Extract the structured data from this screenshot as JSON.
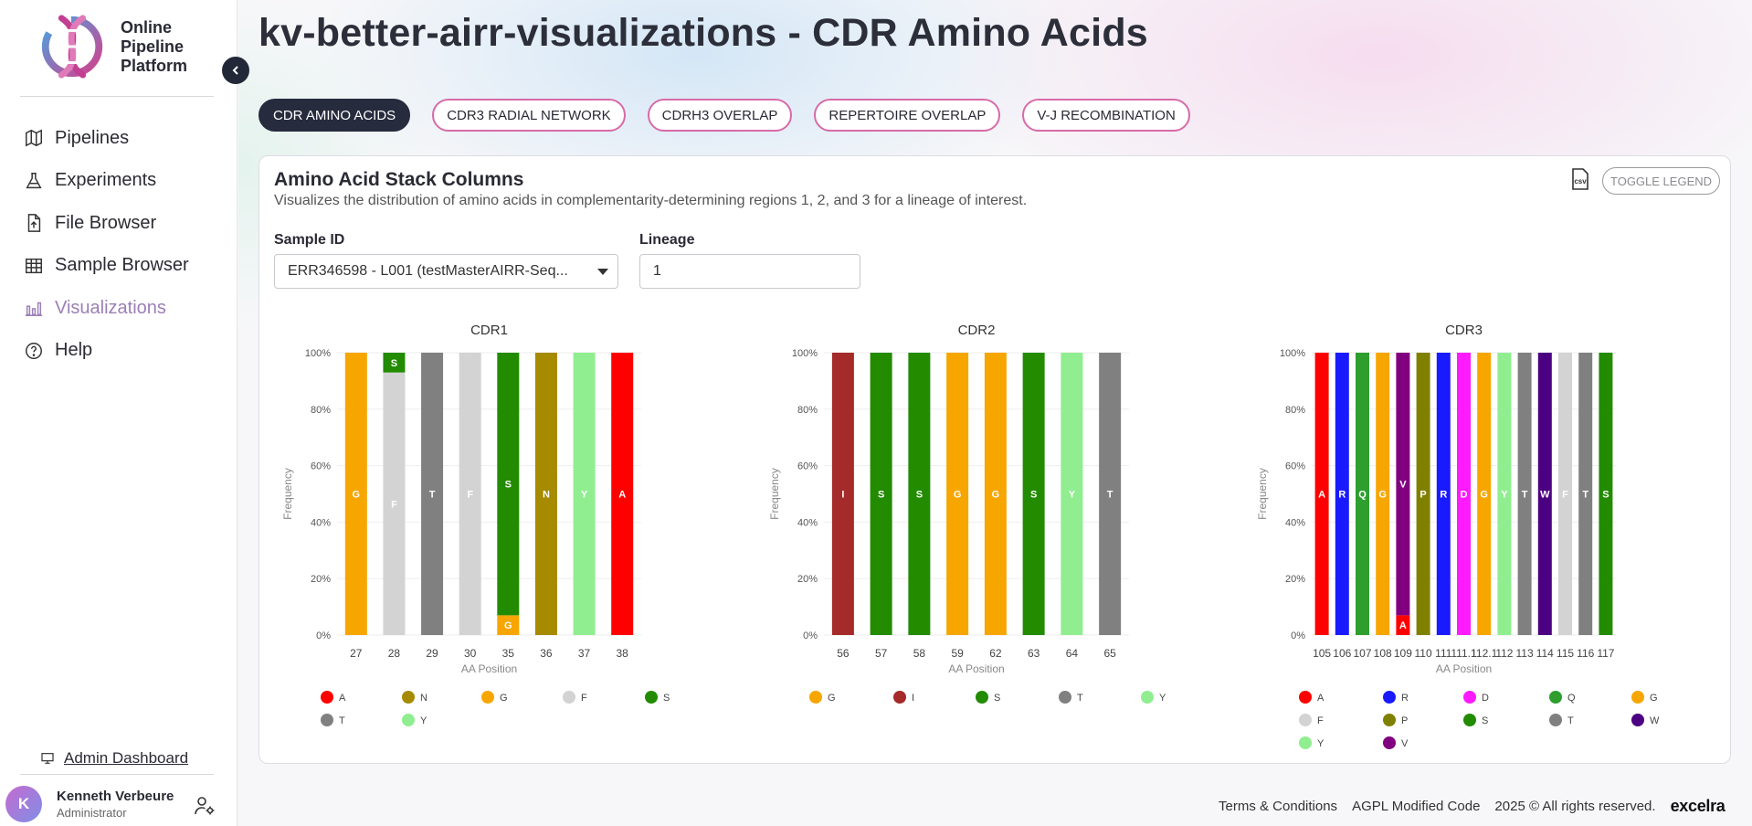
{
  "sidebar": {
    "logo": {
      "line1": "Online",
      "line2": "Pipeline",
      "line3": "Platform"
    },
    "nav": [
      {
        "label": "Pipelines",
        "icon": "map-icon"
      },
      {
        "label": "Experiments",
        "icon": "flask-icon"
      },
      {
        "label": "File Browser",
        "icon": "file-upload-icon"
      },
      {
        "label": "Sample Browser",
        "icon": "table-icon"
      },
      {
        "label": "Visualizations",
        "icon": "bar-chart-icon",
        "active": true
      },
      {
        "label": "Help",
        "icon": "help-icon"
      }
    ],
    "admin_label": "Admin Dashboard",
    "user": {
      "initial": "K",
      "name": "Kenneth Verbeure",
      "role": "Administrator"
    }
  },
  "header": {
    "title": "kv-better-airr-visualizations - CDR Amino Acids"
  },
  "tabs": [
    {
      "label": "CDR AMINO ACIDS",
      "active": true
    },
    {
      "label": "CDR3 RADIAL NETWORK"
    },
    {
      "label": "CDRH3 OVERLAP"
    },
    {
      "label": "REPERTOIRE OVERLAP"
    },
    {
      "label": "V-J RECOMBINATION"
    }
  ],
  "card": {
    "title": "Amino Acid Stack Columns",
    "subtitle": "Visualizes the distribution of amino acids in complementarity-determining regions 1, 2, and 3 for a lineage of interest.",
    "csv_label": "csv",
    "toggle_legend": "TOGGLE LEGEND",
    "sample_label": "Sample ID",
    "sample_value": "ERR346598 - L001 (testMasterAIRR-Seq...",
    "lineage_label": "Lineage",
    "lineage_value": "1"
  },
  "colors": {
    "A": "#ff0000",
    "R": "#1a1aff",
    "N": "#a68a00",
    "D": "#ff1aff",
    "Q": "#2e9e2e",
    "G": "#f7a600",
    "I": "#a52a2a",
    "F": "#d3d3d3",
    "P": "#808000",
    "S": "#228b00",
    "T": "#808080",
    "W": "#4b0082",
    "Y": "#90ee90",
    "V": "#800080"
  },
  "chart_data": [
    {
      "type": "bar",
      "stacked": true,
      "title": "CDR1",
      "xlabel": "AA Position",
      "ylabel": "Frequency",
      "ylim": [
        0,
        100
      ],
      "yticks": [
        "0%",
        "20%",
        "40%",
        "60%",
        "80%",
        "100%"
      ],
      "categories": [
        "27",
        "28",
        "29",
        "30",
        "35",
        "36",
        "37",
        "38"
      ],
      "stacks": [
        [
          {
            "aa": "G",
            "value": 100
          }
        ],
        [
          {
            "aa": "F",
            "value": 93
          },
          {
            "aa": "S",
            "value": 7
          }
        ],
        [
          {
            "aa": "T",
            "value": 100
          }
        ],
        [
          {
            "aa": "F",
            "value": 100
          }
        ],
        [
          {
            "aa": "G",
            "value": 7
          },
          {
            "aa": "S",
            "value": 93
          }
        ],
        [
          {
            "aa": "N",
            "value": 100
          }
        ],
        [
          {
            "aa": "Y",
            "value": 100
          }
        ],
        [
          {
            "aa": "A",
            "value": 100
          }
        ]
      ],
      "legend": [
        "A",
        "N",
        "G",
        "F",
        "S",
        "T",
        "Y"
      ]
    },
    {
      "type": "bar",
      "stacked": true,
      "title": "CDR2",
      "xlabel": "AA Position",
      "ylabel": "Frequency",
      "ylim": [
        0,
        100
      ],
      "yticks": [
        "0%",
        "20%",
        "40%",
        "60%",
        "80%",
        "100%"
      ],
      "categories": [
        "56",
        "57",
        "58",
        "59",
        "62",
        "63",
        "64",
        "65"
      ],
      "stacks": [
        [
          {
            "aa": "I",
            "value": 100
          }
        ],
        [
          {
            "aa": "S",
            "value": 100
          }
        ],
        [
          {
            "aa": "S",
            "value": 100
          }
        ],
        [
          {
            "aa": "G",
            "value": 100
          }
        ],
        [
          {
            "aa": "G",
            "value": 100
          }
        ],
        [
          {
            "aa": "S",
            "value": 100
          }
        ],
        [
          {
            "aa": "Y",
            "value": 100
          }
        ],
        [
          {
            "aa": "T",
            "value": 100
          }
        ]
      ],
      "legend": [
        "G",
        "I",
        "S",
        "T",
        "Y"
      ]
    },
    {
      "type": "bar",
      "stacked": true,
      "title": "CDR3",
      "xlabel": "AA Position",
      "ylabel": "Frequency",
      "ylim": [
        0,
        100
      ],
      "yticks": [
        "0%",
        "20%",
        "40%",
        "60%",
        "80%",
        "100%"
      ],
      "categories": [
        "105",
        "106",
        "107",
        "108",
        "109",
        "110",
        "111",
        "111.1",
        "112.1",
        "112",
        "113",
        "114",
        "115",
        "116",
        "117"
      ],
      "stacks": [
        [
          {
            "aa": "A",
            "value": 100
          }
        ],
        [
          {
            "aa": "R",
            "value": 100
          }
        ],
        [
          {
            "aa": "Q",
            "value": 100
          }
        ],
        [
          {
            "aa": "G",
            "value": 100
          }
        ],
        [
          {
            "aa": "A",
            "value": 7
          },
          {
            "aa": "V",
            "value": 93
          }
        ],
        [
          {
            "aa": "P",
            "value": 100
          }
        ],
        [
          {
            "aa": "R",
            "value": 100
          }
        ],
        [
          {
            "aa": "D",
            "value": 100
          }
        ],
        [
          {
            "aa": "G",
            "value": 100
          }
        ],
        [
          {
            "aa": "Y",
            "value": 100
          }
        ],
        [
          {
            "aa": "T",
            "value": 100
          }
        ],
        [
          {
            "aa": "W",
            "value": 100
          }
        ],
        [
          {
            "aa": "F",
            "value": 100
          }
        ],
        [
          {
            "aa": "T",
            "value": 100
          }
        ],
        [
          {
            "aa": "S",
            "value": 100
          }
        ]
      ],
      "legend": [
        "A",
        "R",
        "D",
        "Q",
        "G",
        "F",
        "P",
        "S",
        "T",
        "W",
        "Y",
        "V"
      ]
    }
  ],
  "footer": {
    "terms": "Terms & Conditions",
    "license": "AGPL Modified Code",
    "copyright": "2025 © All rights reserved.",
    "brand": "excelra"
  }
}
